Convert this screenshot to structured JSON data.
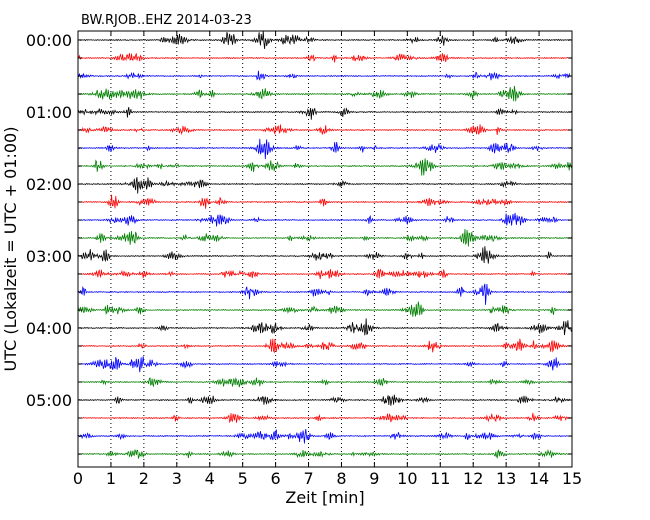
{
  "chart_data": {
    "type": "line",
    "title": "BW.RJOB..EHZ 2014-03-23",
    "xlabel": "Zeit  [min]",
    "ylabel": "UTC (Lokalzeit = UTC + 01:00)",
    "xlim": [
      0,
      15
    ],
    "x_ticks": [
      "0",
      "1",
      "2",
      "3",
      "4",
      "5",
      "6",
      "7",
      "8",
      "9",
      "10",
      "11",
      "12",
      "13",
      "14",
      "15"
    ],
    "y_tick_labels": [
      "00:00",
      "01:00",
      "02:00",
      "03:00",
      "04:00",
      "05:00"
    ],
    "traces_per_hour": 4,
    "trace_minutes": 15,
    "trace_count": 24,
    "trace_colors": [
      "#000000",
      "#ff0000",
      "#0000ff",
      "#007f00"
    ],
    "grid": "vertical dotted lines at each minute"
  }
}
